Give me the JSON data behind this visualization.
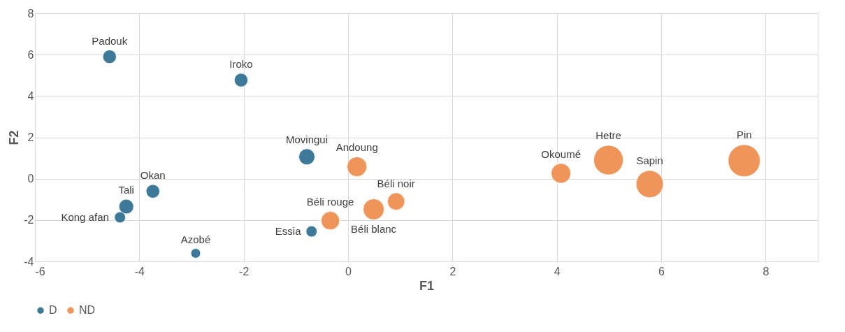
{
  "chart_data": {
    "type": "bubble",
    "xlabel": "F1",
    "ylabel": "F2",
    "xlim": [
      -6,
      9
    ],
    "xticks": [
      -6,
      -4,
      -2,
      0,
      2,
      4,
      6,
      8
    ],
    "ylim": [
      -4,
      8
    ],
    "yticks": [
      -4,
      -2,
      0,
      2,
      4,
      6,
      8
    ],
    "grid": true,
    "legend": "bottom",
    "marker": "circle",
    "series": [
      {
        "name": "D",
        "color": "#3d7a99",
        "x": [
          -4.57,
          -2.05,
          -0.79,
          -3.74,
          -4.25,
          -4.37,
          -2.92,
          -0.7
        ],
        "values": [
          5.9,
          4.77,
          1.06,
          -0.61,
          -1.35,
          -1.87,
          -3.61,
          -2.55
        ],
        "sizes": [
          0.18,
          0.18,
          0.25,
          0.18,
          0.21,
          0.12,
          0.09,
          0.12
        ]
      },
      {
        "name": "ND",
        "color": "#f0955a",
        "x": [
          0.17,
          0.49,
          0.92,
          -0.34,
          4.08,
          4.99,
          5.78,
          7.59
        ],
        "values": [
          0.58,
          -1.48,
          -1.1,
          -2.03,
          0.26,
          0.9,
          -0.26,
          0.87
        ],
        "sizes": [
          0.38,
          0.43,
          0.29,
          0.33,
          0.38,
          0.85,
          0.72,
          1
        ]
      }
    ],
    "annotations": [
      {
        "text": "Padouk",
        "x": -4.57,
        "y": 5.9
      },
      {
        "text": "Iroko",
        "x": -2.05,
        "y": 4.77
      },
      {
        "text": "Movingui",
        "x": -0.79,
        "y": 1.06
      },
      {
        "text": "Okan",
        "x": -3.74,
        "y": -0.61
      },
      {
        "text": "Tali",
        "x": -4.25,
        "y": -1.35
      },
      {
        "text": "Kong afan",
        "x": -4.37,
        "y": -1.87
      },
      {
        "text": "Azobé",
        "x": -2.92,
        "y": -3.61
      },
      {
        "text": "Essia",
        "x": -0.7,
        "y": -2.55
      },
      {
        "text": "Andoung",
        "x": 0.17,
        "y": 0.58
      },
      {
        "text": "Béli blanc",
        "x": 0.49,
        "y": -1.48
      },
      {
        "text": "Béli noir",
        "x": 0.92,
        "y": -1.1
      },
      {
        "text": "Béli rouge",
        "x": -0.34,
        "y": -2.03
      },
      {
        "text": "Okoumé",
        "x": 4.08,
        "y": 0.26
      },
      {
        "text": "Hetre",
        "x": 4.99,
        "y": 0.9
      },
      {
        "text": "Sapin",
        "x": 5.78,
        "y": -0.26
      },
      {
        "text": "Pin",
        "x": 7.59,
        "y": 0.87
      }
    ]
  }
}
